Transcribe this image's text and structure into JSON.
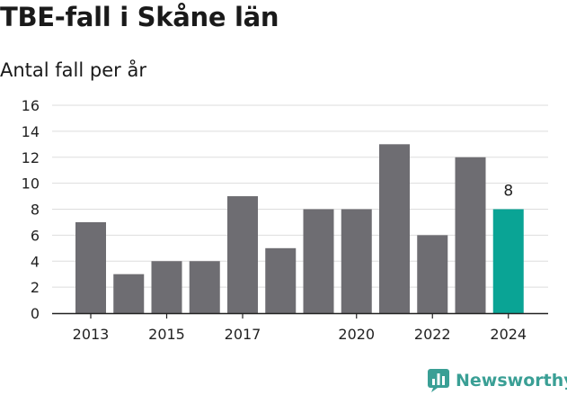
{
  "header": {
    "title": "TBE-fall i Skåne län",
    "subtitle": "Antal fall per år"
  },
  "brand": {
    "name": "Newsworthy",
    "color": "#3a9f95"
  },
  "colors": {
    "bar": "#6e6d72",
    "highlight": "#0aa495",
    "grid": "#dddddd",
    "axis": "#222222",
    "text": "#222222"
  },
  "chart_data": {
    "type": "bar",
    "title": "TBE-fall i Skåne län",
    "subtitle": "Antal fall per år",
    "xlabel": "",
    "ylabel": "",
    "categories": [
      "2013",
      "2014",
      "2015",
      "2016",
      "2017",
      "2018",
      "2019",
      "2020",
      "2021",
      "2022",
      "2023",
      "2024"
    ],
    "values": [
      7,
      3,
      4,
      4,
      9,
      5,
      8,
      8,
      13,
      6,
      12,
      8
    ],
    "x_tick_labels": [
      "2013",
      "2015",
      "2017",
      "2020",
      "2022",
      "2024"
    ],
    "y_ticks": [
      0,
      2,
      4,
      6,
      8,
      10,
      12,
      14,
      16
    ],
    "ylim": [
      0,
      16
    ],
    "grid": true,
    "highlight": {
      "category": "2024",
      "label": "8"
    }
  }
}
